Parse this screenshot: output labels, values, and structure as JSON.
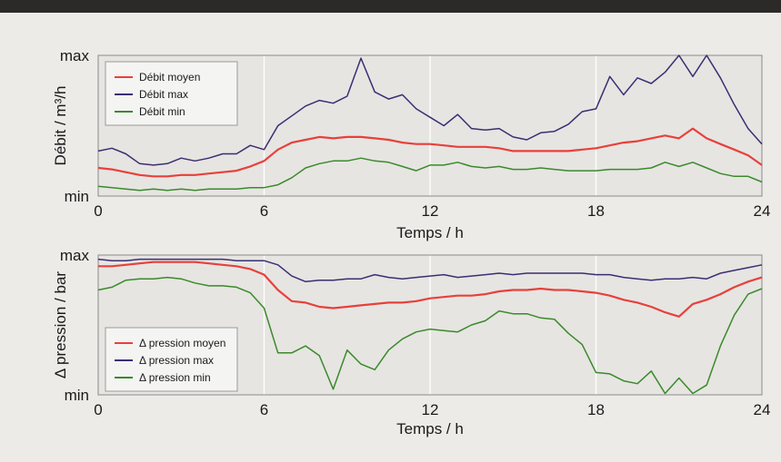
{
  "chart_data": [
    {
      "type": "line",
      "xlabel": "Temps / h",
      "ylabel": "Débit / m³/h",
      "xlim": [
        0,
        24
      ],
      "ylim": [
        0,
        1
      ],
      "x_ticks": [
        "0",
        "6",
        "12",
        "18",
        "24"
      ],
      "y_ticks": [
        "min",
        "max"
      ],
      "grid": "vertical at x = 6, 12, 18",
      "legend": "top-left",
      "x": [
        0,
        0.5,
        1,
        1.5,
        2,
        2.5,
        3,
        3.5,
        4,
        4.5,
        5,
        5.5,
        6,
        6.5,
        7,
        7.5,
        8,
        8.5,
        9,
        9.5,
        10,
        10.5,
        11,
        11.5,
        12,
        12.5,
        13,
        13.5,
        14,
        14.5,
        15,
        15.5,
        16,
        16.5,
        17,
        17.5,
        18,
        18.5,
        19,
        19.5,
        20,
        20.5,
        21,
        21.5,
        22,
        22.5,
        23,
        23.5,
        24
      ],
      "series": [
        {
          "name": "Débit moyen",
          "color": "#e8403a",
          "values": [
            0.2,
            0.19,
            0.17,
            0.15,
            0.14,
            0.14,
            0.15,
            0.15,
            0.16,
            0.17,
            0.18,
            0.21,
            0.25,
            0.33,
            0.38,
            0.4,
            0.42,
            0.41,
            0.42,
            0.42,
            0.41,
            0.4,
            0.38,
            0.37,
            0.37,
            0.36,
            0.35,
            0.35,
            0.35,
            0.34,
            0.32,
            0.32,
            0.32,
            0.32,
            0.32,
            0.33,
            0.34,
            0.36,
            0.38,
            0.39,
            0.41,
            0.43,
            0.41,
            0.48,
            0.41,
            0.37,
            0.33,
            0.29,
            0.22
          ]
        },
        {
          "name": "Débit max",
          "color": "#3d2d72",
          "values": [
            0.32,
            0.34,
            0.3,
            0.23,
            0.22,
            0.23,
            0.27,
            0.25,
            0.27,
            0.3,
            0.3,
            0.36,
            0.33,
            0.5,
            0.57,
            0.64,
            0.68,
            0.66,
            0.71,
            0.98,
            0.74,
            0.69,
            0.72,
            0.62,
            0.56,
            0.5,
            0.58,
            0.48,
            0.47,
            0.48,
            0.42,
            0.4,
            0.45,
            0.46,
            0.51,
            0.6,
            0.62,
            0.85,
            0.72,
            0.84,
            0.8,
            0.88,
            1.0,
            0.85,
            1.0,
            0.84,
            0.65,
            0.48,
            0.37
          ]
        },
        {
          "name": "Débit min",
          "color": "#3a8a2a",
          "values": [
            0.07,
            0.06,
            0.05,
            0.04,
            0.05,
            0.04,
            0.05,
            0.04,
            0.05,
            0.05,
            0.05,
            0.06,
            0.06,
            0.08,
            0.13,
            0.2,
            0.23,
            0.25,
            0.25,
            0.27,
            0.25,
            0.24,
            0.21,
            0.18,
            0.22,
            0.22,
            0.24,
            0.21,
            0.2,
            0.21,
            0.19,
            0.19,
            0.2,
            0.19,
            0.18,
            0.18,
            0.18,
            0.19,
            0.19,
            0.19,
            0.2,
            0.24,
            0.21,
            0.24,
            0.2,
            0.16,
            0.14,
            0.14,
            0.1
          ]
        }
      ]
    },
    {
      "type": "line",
      "xlabel": "Temps / h",
      "ylabel": "Δ pression / bar",
      "xlim": [
        0,
        24
      ],
      "ylim": [
        0,
        1
      ],
      "x_ticks": [
        "0",
        "6",
        "12",
        "18",
        "24"
      ],
      "y_ticks": [
        "min",
        "max"
      ],
      "grid": "vertical at x = 6, 12, 18",
      "legend": "bottom-left",
      "x": [
        0,
        0.5,
        1,
        1.5,
        2,
        2.5,
        3,
        3.5,
        4,
        4.5,
        5,
        5.5,
        6,
        6.5,
        7,
        7.5,
        8,
        8.5,
        9,
        9.5,
        10,
        10.5,
        11,
        11.5,
        12,
        12.5,
        13,
        13.5,
        14,
        14.5,
        15,
        15.5,
        16,
        16.5,
        17,
        17.5,
        18,
        18.5,
        19,
        19.5,
        20,
        20.5,
        21,
        21.5,
        22,
        22.5,
        23,
        23.5,
        24
      ],
      "series": [
        {
          "name": "Δ pression moyen",
          "color": "#e8403a",
          "values": [
            0.92,
            0.92,
            0.93,
            0.94,
            0.95,
            0.95,
            0.95,
            0.95,
            0.94,
            0.93,
            0.92,
            0.9,
            0.86,
            0.75,
            0.67,
            0.66,
            0.63,
            0.62,
            0.63,
            0.64,
            0.65,
            0.66,
            0.66,
            0.67,
            0.69,
            0.7,
            0.71,
            0.71,
            0.72,
            0.74,
            0.75,
            0.75,
            0.76,
            0.75,
            0.75,
            0.74,
            0.73,
            0.71,
            0.68,
            0.66,
            0.63,
            0.59,
            0.56,
            0.65,
            0.68,
            0.72,
            0.77,
            0.81,
            0.84
          ]
        },
        {
          "name": "Δ pression max",
          "color": "#3d2d72",
          "values": [
            0.97,
            0.96,
            0.96,
            0.97,
            0.97,
            0.97,
            0.97,
            0.97,
            0.97,
            0.97,
            0.96,
            0.96,
            0.96,
            0.93,
            0.85,
            0.81,
            0.82,
            0.82,
            0.83,
            0.83,
            0.86,
            0.84,
            0.83,
            0.84,
            0.85,
            0.86,
            0.84,
            0.85,
            0.86,
            0.87,
            0.86,
            0.87,
            0.87,
            0.87,
            0.87,
            0.87,
            0.86,
            0.86,
            0.84,
            0.83,
            0.82,
            0.83,
            0.83,
            0.84,
            0.83,
            0.87,
            0.89,
            0.91,
            0.93
          ]
        },
        {
          "name": "Δ pression min",
          "color": "#3a8a2a",
          "values": [
            0.75,
            0.77,
            0.82,
            0.83,
            0.83,
            0.84,
            0.83,
            0.8,
            0.78,
            0.78,
            0.77,
            0.73,
            0.62,
            0.3,
            0.3,
            0.35,
            0.28,
            0.04,
            0.32,
            0.22,
            0.18,
            0.32,
            0.4,
            0.45,
            0.47,
            0.46,
            0.45,
            0.5,
            0.53,
            0.6,
            0.58,
            0.58,
            0.55,
            0.54,
            0.44,
            0.36,
            0.16,
            0.15,
            0.1,
            0.08,
            0.17,
            0.01,
            0.12,
            0.01,
            0.07,
            0.35,
            0.57,
            0.72,
            0.76
          ]
        }
      ]
    }
  ]
}
